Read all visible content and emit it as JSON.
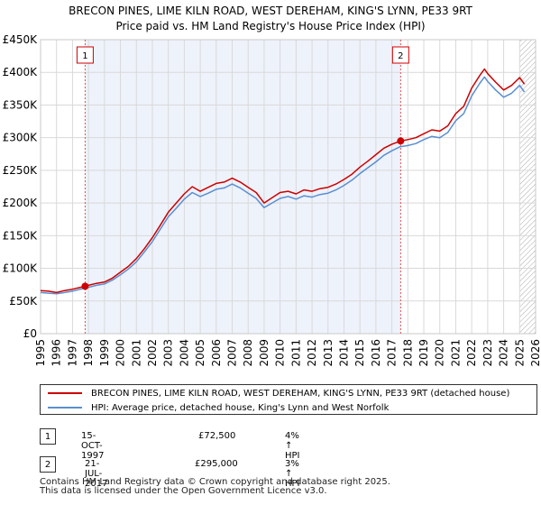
{
  "chart_data": {
    "type": "line",
    "title": "BRECON PINES, LIME KILN ROAD, WEST DEREHAM, KING'S LYNN, PE33 9RT",
    "subtitle": "Price paid vs. HM Land Registry's House Price Index (HPI)",
    "xlim": [
      1995,
      2026
    ],
    "ylim": [
      0,
      450000
    ],
    "y_ticks": [
      {
        "value": 0,
        "label": "£0"
      },
      {
        "value": 50000,
        "label": "£50K"
      },
      {
        "value": 100000,
        "label": "£100K"
      },
      {
        "value": 150000,
        "label": "£150K"
      },
      {
        "value": 200000,
        "label": "£200K"
      },
      {
        "value": 250000,
        "label": "£250K"
      },
      {
        "value": 300000,
        "label": "£300K"
      },
      {
        "value": 350000,
        "label": "£350K"
      },
      {
        "value": 400000,
        "label": "£400K"
      },
      {
        "value": 450000,
        "label": "£450K"
      }
    ],
    "x_ticks": [
      "1995",
      "1996",
      "1997",
      "1998",
      "1999",
      "2000",
      "2001",
      "2002",
      "2003",
      "2004",
      "2005",
      "2006",
      "2007",
      "2008",
      "2009",
      "2010",
      "2011",
      "2012",
      "2013",
      "2014",
      "2015",
      "2016",
      "2017",
      "2018",
      "2019",
      "2020",
      "2021",
      "2022",
      "2023",
      "2024",
      "2025",
      "2026"
    ],
    "shaded_range": [
      1997.79,
      2017.55
    ],
    "hatch_from": 2025.0,
    "series": [
      {
        "name": "BRECON PINES, LIME KILN ROAD, WEST DEREHAM, KING'S LYNN, PE33 9RT (detached house)",
        "color": "#cc0000",
        "x": [
          1995.0,
          1995.5,
          1996.0,
          1996.5,
          1997.0,
          1997.5,
          1997.79,
          1998.0,
          1998.5,
          1999.0,
          1999.5,
          2000.0,
          2000.5,
          2001.0,
          2001.5,
          2002.0,
          2002.5,
          2003.0,
          2003.5,
          2004.0,
          2004.5,
          2005.0,
          2005.5,
          2006.0,
          2006.5,
          2007.0,
          2007.5,
          2008.0,
          2008.5,
          2009.0,
          2009.5,
          2010.0,
          2010.5,
          2011.0,
          2011.5,
          2012.0,
          2012.5,
          2013.0,
          2013.5,
          2014.0,
          2014.5,
          2015.0,
          2015.5,
          2016.0,
          2016.5,
          2017.0,
          2017.55,
          2018.0,
          2018.5,
          2019.0,
          2019.5,
          2020.0,
          2020.5,
          2021.0,
          2021.5,
          2022.0,
          2022.5,
          2022.8,
          2023.0,
          2023.5,
          2024.0,
          2024.5,
          2025.0,
          2025.3
        ],
        "values": [
          66000,
          65000,
          63000,
          66000,
          68000,
          71000,
          72500,
          74000,
          77000,
          79000,
          85000,
          94000,
          103000,
          115000,
          130000,
          147000,
          166000,
          186000,
          200000,
          214000,
          225000,
          218000,
          224000,
          230000,
          232000,
          238000,
          232000,
          224000,
          216000,
          200000,
          208000,
          216000,
          218000,
          214000,
          220000,
          218000,
          222000,
          224000,
          229000,
          236000,
          244000,
          255000,
          264000,
          274000,
          284000,
          290000,
          295000,
          297000,
          300000,
          306000,
          312000,
          310000,
          318000,
          337000,
          348000,
          376000,
          395000,
          405000,
          398000,
          385000,
          373000,
          380000,
          392000,
          382000
        ]
      },
      {
        "name": "HPI: Average price, detached house, King's Lynn and West Norfolk",
        "color": "#5b8fd0",
        "x": [
          1995.0,
          1995.5,
          1996.0,
          1996.5,
          1997.0,
          1997.5,
          1998.0,
          1998.5,
          1999.0,
          1999.5,
          2000.0,
          2000.5,
          2001.0,
          2001.5,
          2002.0,
          2002.5,
          2003.0,
          2003.5,
          2004.0,
          2004.5,
          2005.0,
          2005.5,
          2006.0,
          2006.5,
          2007.0,
          2007.5,
          2008.0,
          2008.5,
          2009.0,
          2009.5,
          2010.0,
          2010.5,
          2011.0,
          2011.5,
          2012.0,
          2012.5,
          2013.0,
          2013.5,
          2014.0,
          2014.5,
          2015.0,
          2015.5,
          2016.0,
          2016.5,
          2017.0,
          2017.5,
          2018.0,
          2018.5,
          2019.0,
          2019.5,
          2020.0,
          2020.5,
          2021.0,
          2021.5,
          2022.0,
          2022.5,
          2022.8,
          2023.0,
          2023.5,
          2024.0,
          2024.5,
          2025.0,
          2025.3
        ],
        "values": [
          63000,
          62000,
          61000,
          63000,
          65000,
          68000,
          71000,
          74000,
          76000,
          82000,
          90000,
          99000,
          110000,
          125000,
          141000,
          160000,
          179000,
          192000,
          206000,
          216000,
          210000,
          215000,
          221000,
          223000,
          229000,
          223000,
          215000,
          207000,
          193000,
          200000,
          207000,
          210000,
          206000,
          211000,
          209000,
          213000,
          215000,
          220000,
          227000,
          235000,
          245000,
          254000,
          263000,
          273000,
          280000,
          286000,
          288000,
          291000,
          297000,
          302000,
          300000,
          308000,
          326000,
          337000,
          364000,
          383000,
          393000,
          386000,
          373000,
          362000,
          368000,
          380000,
          370000
        ]
      }
    ],
    "sales": [
      {
        "id": "1",
        "x": 1997.79,
        "value": 72500
      },
      {
        "id": "2",
        "x": 2017.55,
        "value": 295000
      }
    ]
  },
  "legend": [
    {
      "label": "BRECON PINES, LIME KILN ROAD, WEST DEREHAM, KING'S LYNN, PE33 9RT (detached house)",
      "color": "#cc0000"
    },
    {
      "label": "HPI: Average price, detached house, King's Lynn and West Norfolk",
      "color": "#5b8fd0"
    }
  ],
  "sales_table": [
    {
      "id": "1",
      "date": "15-OCT-1997",
      "price": "£72,500",
      "hpi": "4% ↑ HPI"
    },
    {
      "id": "2",
      "date": "21-JUL-2017",
      "price": "£295,000",
      "hpi": "3% ↑ HPI"
    }
  ],
  "footer": {
    "line1": "Contains HM Land Registry data © Crown copyright and database right 2025.",
    "line2": "This data is licensed under the Open Government Licence v3.0."
  }
}
